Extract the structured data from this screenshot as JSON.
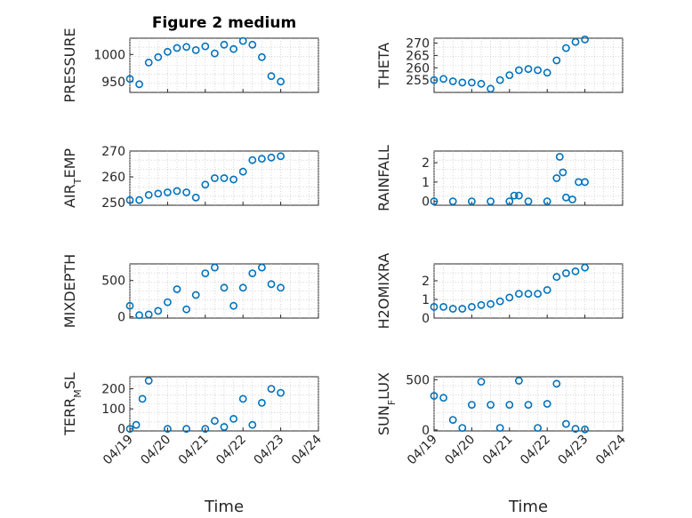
{
  "figure": {
    "title": "Figure 2 medium",
    "colors": {
      "marker": "#0072bd",
      "axes": "#262626",
      "grid": "#bdbdbd"
    },
    "x_tick_labels": [
      "04/19",
      "04/20",
      "04/21",
      "04/22",
      "04/23",
      "04/24"
    ]
  },
  "chart_data": [
    {
      "type": "scatter",
      "ylabel": "PRESSURE",
      "xlabel": "",
      "title": "Figure 2 medium",
      "ylim": [
        930,
        1030
      ],
      "yticks": [
        950,
        1000
      ],
      "xlim": [
        "04/19",
        "04/24"
      ],
      "grid": true,
      "marker": "o",
      "series": [
        {
          "x": [
            "04/19",
            "04/19 06:00",
            "04/19 12:00",
            "04/19 18:00",
            "04/20",
            "04/20 06:00",
            "04/20 12:00",
            "04/20 18:00",
            "04/21",
            "04/21 06:00",
            "04/21 12:00",
            "04/21 18:00",
            "04/22",
            "04/22 06:00",
            "04/22 12:00",
            "04/22 18:00",
            "04/23"
          ],
          "y": [
            955,
            945,
            985,
            995,
            1005,
            1012,
            1014,
            1008,
            1015,
            1002,
            1018,
            1010,
            1025,
            1018,
            995,
            960,
            950
          ]
        }
      ]
    },
    {
      "type": "scatter",
      "ylabel": "THETA",
      "xlabel": "",
      "ylim": [
        250,
        272
      ],
      "yticks": [
        255,
        260,
        265,
        270
      ],
      "xlim": [
        "04/19",
        "04/24"
      ],
      "grid": true,
      "marker": "o",
      "series": [
        {
          "x": [
            "04/19",
            "04/19 06:00",
            "04/19 12:00",
            "04/19 18:00",
            "04/20",
            "04/20 06:00",
            "04/20 12:00",
            "04/20 18:00",
            "04/21",
            "04/21 06:00",
            "04/21 12:00",
            "04/21 18:00",
            "04/22",
            "04/22 06:00",
            "04/22 12:00",
            "04/22 18:00",
            "04/23"
          ],
          "y": [
            255,
            255.5,
            254.5,
            254,
            254,
            253.5,
            251.5,
            255,
            257,
            259,
            259.5,
            259,
            258,
            263,
            268,
            270.5,
            271.5
          ]
        }
      ]
    },
    {
      "type": "scatter",
      "ylabel": "AIR_TEMP",
      "xlabel": "",
      "ylim": [
        249,
        270
      ],
      "yticks": [
        250,
        260,
        270
      ],
      "xlim": [
        "04/19",
        "04/24"
      ],
      "grid": true,
      "marker": "o",
      "series": [
        {
          "x": [
            "04/19",
            "04/19 06:00",
            "04/19 12:00",
            "04/19 18:00",
            "04/20",
            "04/20 06:00",
            "04/20 12:00",
            "04/20 18:00",
            "04/21",
            "04/21 06:00",
            "04/21 12:00",
            "04/21 18:00",
            "04/22",
            "04/22 06:00",
            "04/22 12:00",
            "04/22 18:00",
            "04/23"
          ],
          "y": [
            251,
            251,
            253,
            253.5,
            254,
            254.5,
            254,
            252,
            257,
            259.5,
            259.5,
            259,
            262,
            266.5,
            267,
            267.5,
            268
          ]
        }
      ]
    },
    {
      "type": "scatter",
      "ylabel": "RAINFALL",
      "xlabel": "",
      "ylim": [
        -0.2,
        2.6
      ],
      "yticks": [
        0,
        1,
        2
      ],
      "xlim": [
        "04/19",
        "04/24"
      ],
      "grid": true,
      "marker": "o",
      "series": [
        {
          "x": [
            "04/19",
            "04/19 12:00",
            "04/20",
            "04/20 12:00",
            "04/21",
            "04/21 03:00",
            "04/21 06:00",
            "04/21 12:00",
            "04/22",
            "04/22 06:00",
            "04/22 08:00",
            "04/22 10:00",
            "04/22 12:00",
            "04/22 16:00",
            "04/22 20:00",
            "04/23"
          ],
          "y": [
            0,
            0,
            0,
            0,
            0,
            0.3,
            0.3,
            0,
            0,
            1.2,
            2.3,
            1.5,
            0.2,
            0.1,
            1.0,
            1.0
          ]
        }
      ]
    },
    {
      "type": "scatter",
      "ylabel": "MIXDEPTH",
      "xlabel": "",
      "ylim": [
        -20,
        730
      ],
      "yticks": [
        0,
        500
      ],
      "xlim": [
        "04/19",
        "04/24"
      ],
      "grid": true,
      "marker": "o",
      "series": [
        {
          "x": [
            "04/19",
            "04/19 06:00",
            "04/19 12:00",
            "04/19 18:00",
            "04/20",
            "04/20 06:00",
            "04/20 12:00",
            "04/20 18:00",
            "04/21",
            "04/21 06:00",
            "04/21 12:00",
            "04/21 18:00",
            "04/22",
            "04/22 06:00",
            "04/22 12:00",
            "04/22 18:00",
            "04/23"
          ],
          "y": [
            150,
            20,
            30,
            80,
            200,
            380,
            100,
            300,
            600,
            680,
            400,
            150,
            400,
            600,
            680,
            450,
            400
          ]
        }
      ]
    },
    {
      "type": "scatter",
      "ylabel": "H2OMIXRA",
      "xlabel": "",
      "ylim": [
        0,
        2.9
      ],
      "yticks": [
        0,
        1,
        2
      ],
      "xlim": [
        "04/19",
        "04/24"
      ],
      "grid": true,
      "marker": "o",
      "series": [
        {
          "x": [
            "04/19",
            "04/19 06:00",
            "04/19 12:00",
            "04/19 18:00",
            "04/20",
            "04/20 06:00",
            "04/20 12:00",
            "04/20 18:00",
            "04/21",
            "04/21 06:00",
            "04/21 12:00",
            "04/21 18:00",
            "04/22",
            "04/22 06:00",
            "04/22 12:00",
            "04/22 18:00",
            "04/23"
          ],
          "y": [
            0.6,
            0.6,
            0.5,
            0.5,
            0.6,
            0.7,
            0.75,
            0.9,
            1.1,
            1.3,
            1.3,
            1.3,
            1.5,
            2.2,
            2.4,
            2.5,
            2.7
          ]
        }
      ]
    },
    {
      "type": "scatter",
      "ylabel": "TERR_MSL",
      "xlabel": "Time",
      "ylim": [
        -10,
        260
      ],
      "yticks": [
        0,
        100,
        200
      ],
      "xlim": [
        "04/19",
        "04/24"
      ],
      "grid": true,
      "marker": "o",
      "series": [
        {
          "x": [
            "04/19",
            "04/19 04:00",
            "04/19 08:00",
            "04/19 12:00",
            "04/20",
            "04/20 12:00",
            "04/21",
            "04/21 06:00",
            "04/21 12:00",
            "04/21 18:00",
            "04/22",
            "04/22 06:00",
            "04/22 12:00",
            "04/22 18:00",
            "04/23"
          ],
          "y": [
            0,
            20,
            150,
            240,
            0,
            0,
            0,
            40,
            10,
            50,
            150,
            20,
            130,
            200,
            180
          ]
        }
      ]
    },
    {
      "type": "scatter",
      "ylabel": "SUN_FLUX",
      "xlabel": "Time",
      "ylim": [
        -10,
        530
      ],
      "yticks": [
        0,
        500
      ],
      "xlim": [
        "04/19",
        "04/24"
      ],
      "grid": true,
      "marker": "o",
      "series": [
        {
          "x": [
            "04/19",
            "04/19 06:00",
            "04/19 12:00",
            "04/19 18:00",
            "04/20",
            "04/20 06:00",
            "04/20 12:00",
            "04/20 18:00",
            "04/21",
            "04/21 06:00",
            "04/21 12:00",
            "04/21 18:00",
            "04/22",
            "04/22 06:00",
            "04/22 12:00",
            "04/22 18:00",
            "04/23"
          ],
          "y": [
            340,
            320,
            100,
            20,
            250,
            480,
            250,
            20,
            250,
            490,
            250,
            20,
            260,
            460,
            60,
            10,
            5
          ]
        }
      ]
    }
  ]
}
